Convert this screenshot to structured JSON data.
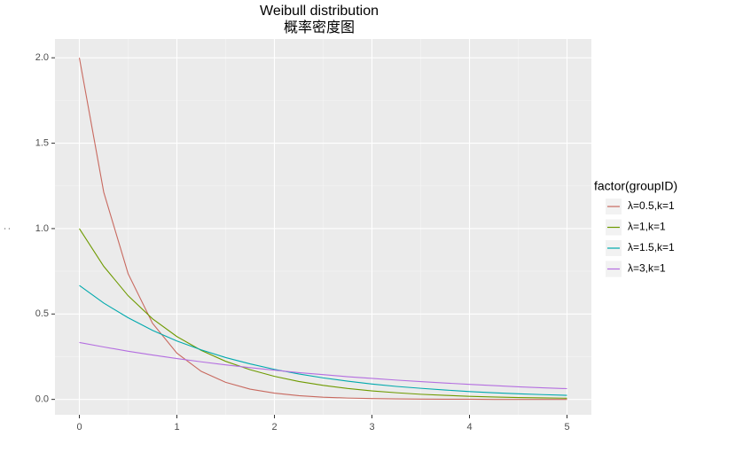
{
  "chart_data": {
    "type": "line",
    "title": "Weibull distribution",
    "subtitle": "概率密度图",
    "y_label": ":",
    "x": [
      0,
      0.25,
      0.5,
      0.75,
      1,
      1.25,
      1.5,
      1.75,
      2,
      2.25,
      2.5,
      2.75,
      3,
      3.25,
      3.5,
      3.75,
      4,
      4.25,
      4.5,
      4.75,
      5
    ],
    "series": [
      {
        "name": "λ=0.5,k=1",
        "color": "#c8695f",
        "values": [
          2,
          1.213,
          0.736,
          0.446,
          0.271,
          0.164,
          0.1,
          0.06,
          0.037,
          0.022,
          0.013,
          0.008,
          0.005,
          0.003,
          0.002,
          0.001,
          0.001,
          0,
          0,
          0,
          0
        ]
      },
      {
        "name": "λ=1,k=1",
        "color": "#6e9a00",
        "values": [
          1,
          0.779,
          0.607,
          0.472,
          0.368,
          0.287,
          0.223,
          0.174,
          0.135,
          0.105,
          0.082,
          0.064,
          0.05,
          0.039,
          0.03,
          0.024,
          0.018,
          0.014,
          0.011,
          0.009,
          0.007
        ]
      },
      {
        "name": "λ=1.5,k=1",
        "color": "#00a9ad",
        "values": [
          0.667,
          0.564,
          0.478,
          0.404,
          0.342,
          0.29,
          0.245,
          0.208,
          0.176,
          0.149,
          0.126,
          0.107,
          0.09,
          0.076,
          0.065,
          0.055,
          0.046,
          0.039,
          0.033,
          0.028,
          0.024
        ]
      },
      {
        "name": "λ=3,k=1",
        "color": "#b46ee0",
        "values": [
          0.333,
          0.307,
          0.282,
          0.26,
          0.239,
          0.22,
          0.202,
          0.186,
          0.171,
          0.157,
          0.145,
          0.133,
          0.123,
          0.113,
          0.104,
          0.096,
          0.088,
          0.081,
          0.074,
          0.068,
          0.063
        ]
      }
    ],
    "legend_title": "factor(groupID)",
    "legend_position": "right",
    "xlim": [
      -0.25,
      5.25
    ],
    "xticks": [
      0,
      1,
      2,
      3,
      4,
      5
    ],
    "ylim": [
      -0.09,
      2.11
    ],
    "yticks": [
      {
        "value": 0,
        "label": "0.0"
      },
      {
        "value": 0.5,
        "label": "0.5"
      },
      {
        "value": 1,
        "label": "1.0"
      },
      {
        "value": 1.5,
        "label": "1.5"
      },
      {
        "value": 2,
        "label": "2.0"
      }
    ],
    "grid": true
  }
}
